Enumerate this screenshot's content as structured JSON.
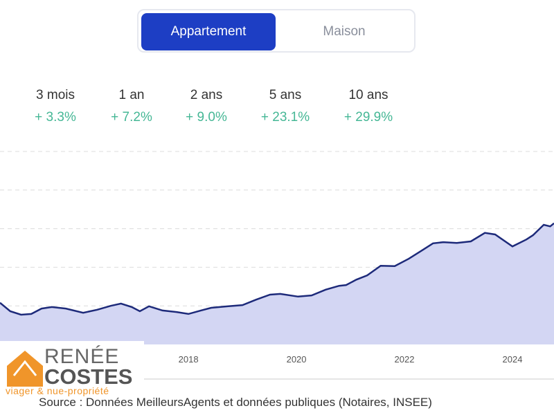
{
  "toggle": {
    "options": [
      "Appartement",
      "Maison"
    ],
    "selected": "Appartement",
    "accent": "#1d3ec4"
  },
  "periods": [
    {
      "label": "3 mois",
      "value": "+ 3.3%"
    },
    {
      "label": "1 an",
      "value": "+ 7.2%"
    },
    {
      "label": "2 ans",
      "value": "+ 9.0%"
    },
    {
      "label": "5 ans",
      "value": "+ 23.1%"
    },
    {
      "label": "10 ans",
      "value": "+ 29.9%"
    }
  ],
  "chart_data": {
    "type": "area",
    "title": "",
    "xlabel": "",
    "ylabel": "",
    "x_ticks": [
      "2018",
      "2020",
      "2022",
      "2024"
    ],
    "xlim": [
      2014.51,
      2024.77
    ],
    "ylim": [
      0,
      5
    ],
    "grid": true,
    "fill_color": "#d3d6f3",
    "line_color": "#1d2a7a",
    "x": [
      2014.51,
      2014.7,
      2014.9,
      2015.09,
      2015.28,
      2015.47,
      2015.73,
      2016.05,
      2016.31,
      2016.56,
      2016.75,
      2016.95,
      2017.1,
      2017.27,
      2017.52,
      2017.78,
      2018.0,
      2018.23,
      2018.42,
      2018.74,
      2019.0,
      2019.25,
      2019.51,
      2019.7,
      2020.03,
      2020.28,
      2020.54,
      2020.79,
      2020.92,
      2021.11,
      2021.31,
      2021.56,
      2021.82,
      2022.08,
      2022.33,
      2022.53,
      2022.72,
      2022.97,
      2023.23,
      2023.49,
      2023.68,
      2024.0,
      2024.26,
      2024.38,
      2024.58,
      2024.7,
      2024.77
    ],
    "y": [
      1.08,
      0.86,
      0.77,
      0.79,
      0.93,
      0.97,
      0.93,
      0.82,
      0.9,
      1.0,
      1.06,
      0.97,
      0.86,
      0.99,
      0.88,
      0.84,
      0.79,
      0.88,
      0.95,
      0.99,
      1.02,
      1.16,
      1.29,
      1.31,
      1.24,
      1.27,
      1.42,
      1.52,
      1.54,
      1.68,
      1.79,
      2.04,
      2.03,
      2.22,
      2.44,
      2.62,
      2.65,
      2.63,
      2.67,
      2.89,
      2.85,
      2.54,
      2.72,
      2.83,
      3.1,
      3.06,
      3.14
    ]
  },
  "logo": {
    "line1": "RENÉE",
    "line2": "COSTES",
    "tagline": "viager & nue-propriété"
  },
  "source": "Source : Données MeilleursAgents et données publiques (Notaires, INSEE)"
}
